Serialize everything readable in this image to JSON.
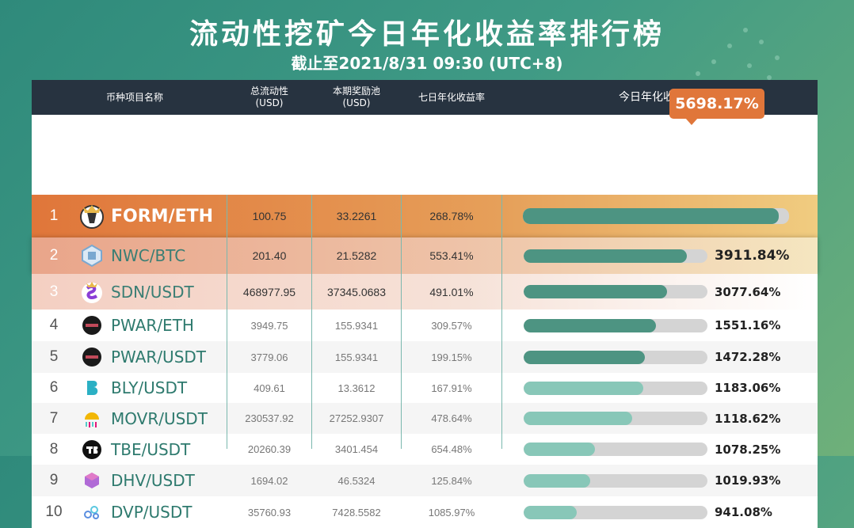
{
  "header": {
    "title": "流动性挖矿今日年化收益率排行榜",
    "subtitle": "截止至2021/8/31 09:30 (UTC+8)"
  },
  "columns": {
    "name": "币种项目名称",
    "liquidity_line1": "总流动性",
    "liquidity_line2": "(USD)",
    "reward_line1": "本期奖励池",
    "reward_line2": "(USD)",
    "seven_day": "七日年化收益率",
    "today": "今日年化收益率"
  },
  "colors": {
    "header_bg": "#273340",
    "bar_dark": "#4d9482",
    "bar_light": "#88c7b8",
    "badge": "#e0763a"
  },
  "rows": [
    {
      "rank": "1",
      "pair": "FORM/ETH",
      "liquidity": "100.75",
      "reward": "33.2261",
      "seven_day": "268.78%",
      "today": "5698.17%",
      "fraction": 0.96,
      "icon": "form-coin-icon"
    },
    {
      "rank": "2",
      "pair": "NWC/BTC",
      "liquidity": "201.40",
      "reward": "21.5282",
      "seven_day": "553.41%",
      "today": "3911.84%",
      "fraction": 0.89,
      "icon": "nwc-coin-icon"
    },
    {
      "rank": "3",
      "pair": "SDN/USDT",
      "liquidity": "468977.95",
      "reward": "37345.0683",
      "seven_day": "491.01%",
      "today": "3077.64%",
      "fraction": 0.78,
      "icon": "sdn-coin-icon"
    },
    {
      "rank": "4",
      "pair": "PWAR/ETH",
      "liquidity": "3949.75",
      "reward": "155.9341",
      "seven_day": "309.57%",
      "today": "1551.16%",
      "fraction": 0.72,
      "icon": "pwar-coin-icon"
    },
    {
      "rank": "5",
      "pair": "PWAR/USDT",
      "liquidity": "3779.06",
      "reward": "155.9341",
      "seven_day": "199.15%",
      "today": "1472.28%",
      "fraction": 0.66,
      "icon": "pwar-coin-icon"
    },
    {
      "rank": "6",
      "pair": "BLY/USDT",
      "liquidity": "409.61",
      "reward": "13.3612",
      "seven_day": "167.91%",
      "today": "1183.06%",
      "fraction": 0.65,
      "icon": "bly-coin-icon"
    },
    {
      "rank": "7",
      "pair": "MOVR/USDT",
      "liquidity": "230537.92",
      "reward": "27252.9307",
      "seven_day": "478.64%",
      "today": "1118.62%",
      "fraction": 0.59,
      "icon": "movr-coin-icon"
    },
    {
      "rank": "8",
      "pair": "TBE/USDT",
      "liquidity": "20260.39",
      "reward": "3401.454",
      "seven_day": "654.48%",
      "today": "1078.25%",
      "fraction": 0.39,
      "icon": "tbe-coin-icon"
    },
    {
      "rank": "9",
      "pair": "DHV/USDT",
      "liquidity": "1694.02",
      "reward": "46.5324",
      "seven_day": "125.84%",
      "today": "1019.93%",
      "fraction": 0.36,
      "icon": "dhv-coin-icon"
    },
    {
      "rank": "10",
      "pair": "DVP/USDT",
      "liquidity": "35760.93",
      "reward": "7428.5582",
      "seven_day": "1085.97%",
      "today": "941.08%",
      "fraction": 0.29,
      "icon": "dvp-coin-icon"
    }
  ]
}
